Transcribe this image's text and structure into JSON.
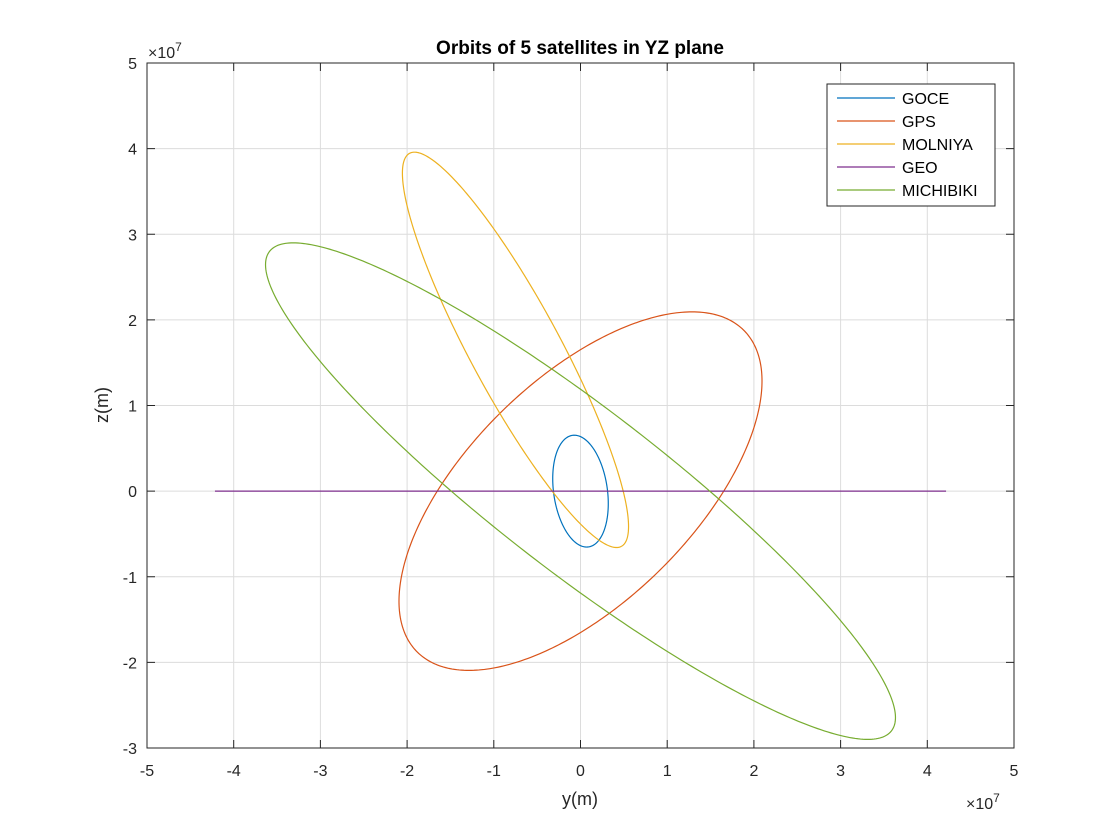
{
  "chart_data": {
    "type": "line",
    "title": "Orbits of 5 satellites in YZ plane",
    "xlabel": "y(m)",
    "ylabel": "z(m)",
    "xlim": [
      -50000000.0,
      50000000.0
    ],
    "ylim": [
      -30000000.0,
      50000000.0
    ],
    "x_scale_exponent": "×10",
    "x_scale_power": "7",
    "y_scale_exponent": "×10",
    "y_scale_power": "7",
    "xticks": [
      -5,
      -4,
      -3,
      -2,
      -1,
      0,
      1,
      2,
      3,
      4,
      5
    ],
    "xtick_labels": [
      "-5",
      "-4",
      "-3",
      "-2",
      "-1",
      "0",
      "1",
      "2",
      "3",
      "4",
      "5"
    ],
    "yticks": [
      -3,
      -2,
      -1,
      0,
      1,
      2,
      3,
      4,
      5
    ],
    "ytick_labels": [
      "-3",
      "-2",
      "-1",
      "0",
      "1",
      "2",
      "3",
      "4",
      "5"
    ],
    "grid": true,
    "legend_position": "top-right",
    "series": [
      {
        "name": "GOCE",
        "color": "#0072BD",
        "shape": "ellipse",
        "center": [
          0.0,
          0.0
        ],
        "semi_major": 6580000.0,
        "semi_minor": 3100000.0,
        "rotation_deg": -82
      },
      {
        "name": "GPS",
        "color": "#D95319",
        "shape": "ellipse",
        "center": [
          0.0,
          0.0
        ],
        "semi_major": 26600000.0,
        "semi_minor": 13000000.0,
        "rotation_deg": 45
      },
      {
        "name": "MOLNIYA",
        "color": "#EDB120",
        "shape": "ellipse",
        "center": [
          -7500000.0,
          16500000.0
        ],
        "semi_major": 26000000.0,
        "semi_minor": 5200000.0,
        "rotation_deg": -62
      },
      {
        "name": "GEO",
        "color": "#7E2F8E",
        "shape": "line",
        "x": [
          -42164000.0,
          42164000.0
        ],
        "y": [
          0,
          0
        ]
      },
      {
        "name": "MICHIBIKI",
        "color": "#77AC30",
        "shape": "ellipse",
        "center": [
          0.0,
          0.0
        ],
        "semi_major": 45500000.0,
        "semi_minor": 9500000.0,
        "rotation_deg": -38
      }
    ]
  }
}
